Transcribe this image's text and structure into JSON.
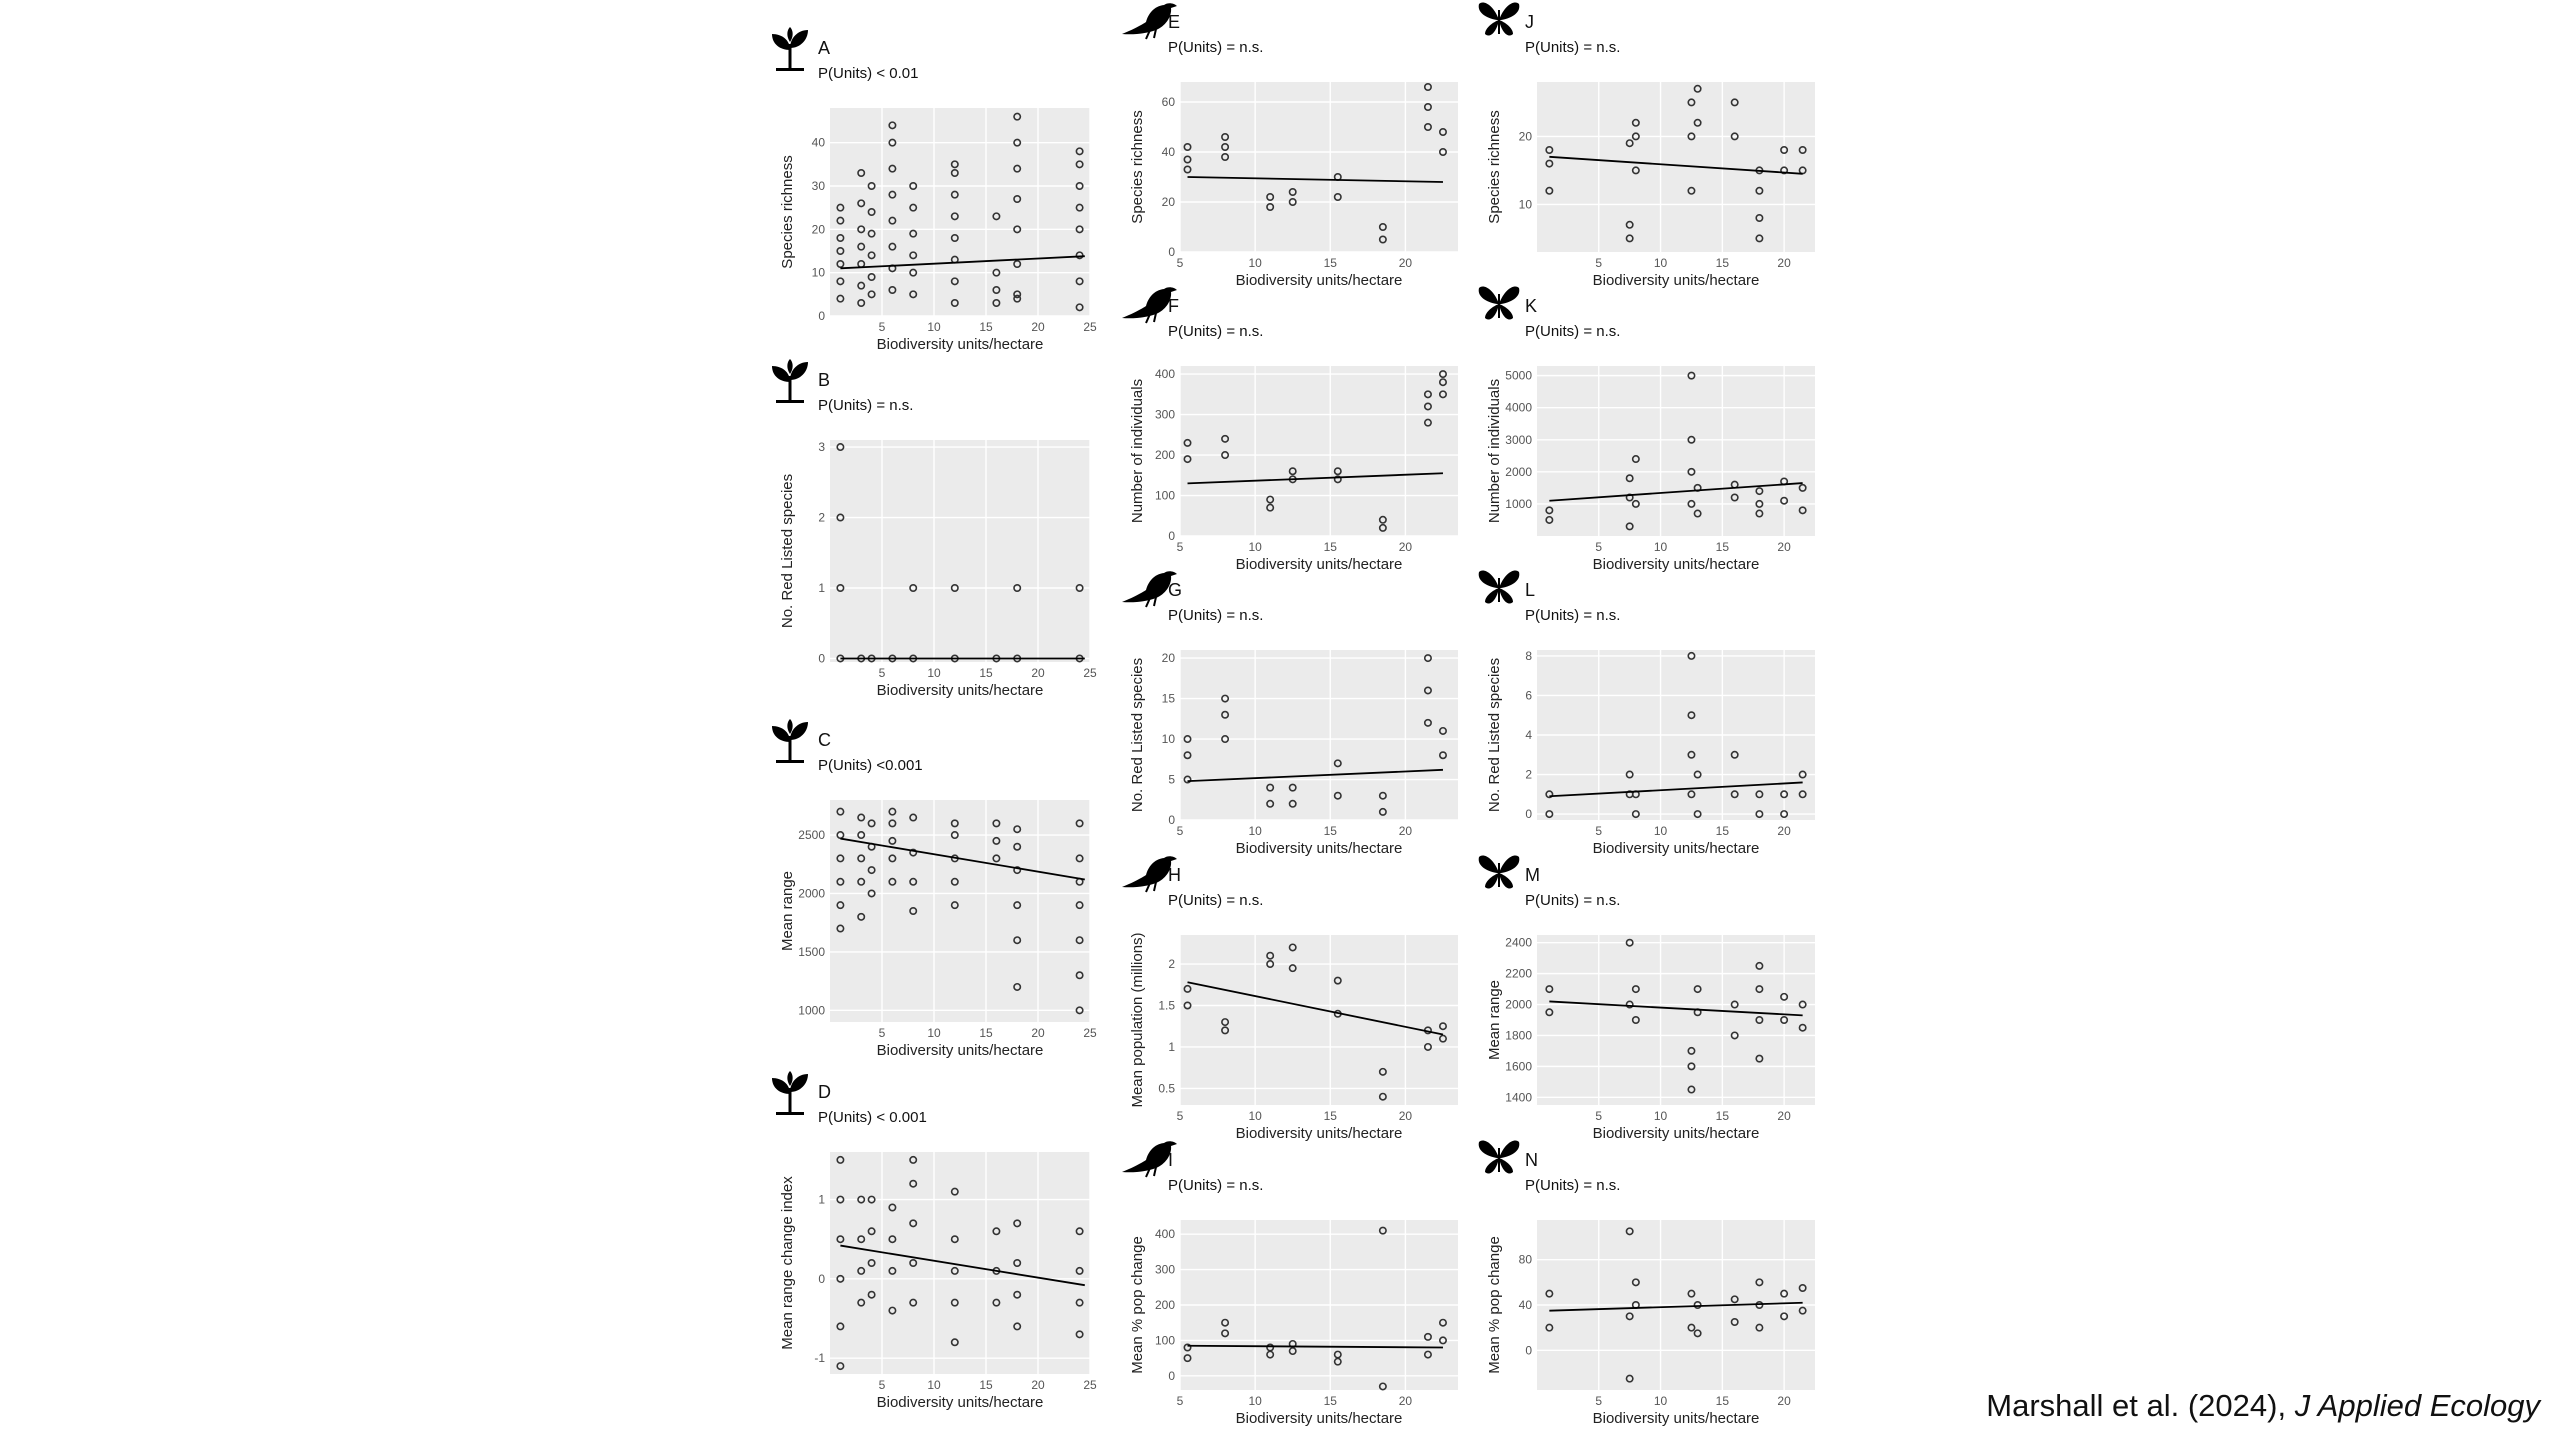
{
  "citation": {
    "authors": "Marshall et al. (2024),",
    "journal": "J Applied Ecology"
  },
  "icon_legend": {
    "plant": "plant-icon",
    "bird": "bird-icon",
    "butterfly": "butterfly-icon"
  },
  "colors": {
    "panel_bg": "#ebebeb",
    "grid": "#ffffff",
    "points": "#333333",
    "line": "#000000"
  },
  "chart_data": [
    {
      "letter": "A",
      "type": "scatter",
      "icon": "plant-icon",
      "stat": "P(Units) < 0.01",
      "xlabel": "Biodiversity units/hectare",
      "ylabel": "Species richness",
      "xlim": [
        0,
        25
      ],
      "ylim": [
        0,
        48
      ],
      "xticks": [
        5,
        10,
        15,
        20,
        25
      ],
      "yticks": [
        0,
        10,
        20,
        30,
        40
      ],
      "x": [
        1,
        1,
        1,
        1,
        1,
        1,
        1,
        3,
        3,
        3,
        3,
        3,
        3,
        3,
        4,
        4,
        4,
        4,
        4,
        4,
        6,
        6,
        6,
        6,
        6,
        6,
        6,
        6,
        8,
        8,
        8,
        8,
        8,
        8,
        12,
        12,
        12,
        12,
        12,
        12,
        12,
        12,
        16,
        16,
        16,
        16,
        18,
        18,
        18,
        18,
        18,
        18,
        18,
        18,
        24,
        24,
        24,
        24,
        24,
        24,
        24,
        24
      ],
      "y": [
        4,
        8,
        12,
        15,
        18,
        22,
        25,
        3,
        7,
        12,
        16,
        20,
        26,
        33,
        5,
        9,
        14,
        19,
        24,
        30,
        6,
        11,
        16,
        22,
        28,
        34,
        40,
        44,
        5,
        10,
        14,
        19,
        25,
        30,
        3,
        8,
        13,
        18,
        23,
        28,
        33,
        35,
        3,
        6,
        10,
        23,
        5,
        12,
        20,
        27,
        34,
        40,
        46,
        4,
        2,
        8,
        14,
        20,
        25,
        30,
        35,
        38
      ],
      "fit": {
        "x": [
          1,
          24.5
        ],
        "y": [
          11,
          13.8
        ]
      }
    },
    {
      "letter": "B",
      "type": "scatter",
      "icon": "plant-icon",
      "stat": "P(Units) = n.s.",
      "xlabel": "Biodiversity units/hectare",
      "ylabel": "No. Red Listed species",
      "xlim": [
        0,
        25
      ],
      "ylim": [
        -0.05,
        3.1
      ],
      "xticks": [
        5,
        10,
        15,
        20,
        25
      ],
      "yticks": [
        0,
        1,
        2,
        3
      ],
      "x": [
        1,
        1,
        1,
        1,
        3,
        4,
        6,
        8,
        8,
        12,
        12,
        16,
        18,
        18,
        24,
        24
      ],
      "y": [
        0,
        1,
        2,
        3,
        0,
        0,
        0,
        0,
        1,
        0,
        1,
        0,
        0,
        1,
        0,
        1
      ],
      "fit": {
        "x": [
          1,
          24.5
        ],
        "y": [
          0,
          0
        ]
      }
    },
    {
      "letter": "C",
      "type": "scatter",
      "icon": "plant-icon",
      "stat": "P(Units) <0.001",
      "xlabel": "Biodiversity units/hectare",
      "ylabel": "Mean range",
      "xlim": [
        0,
        25
      ],
      "ylim": [
        900,
        2800
      ],
      "xticks": [
        5,
        10,
        15,
        20,
        25
      ],
      "yticks": [
        1000,
        1500,
        2000,
        2500
      ],
      "x": [
        1,
        1,
        1,
        1,
        1,
        1,
        3,
        3,
        3,
        3,
        3,
        4,
        4,
        4,
        4,
        6,
        6,
        6,
        6,
        6,
        8,
        8,
        8,
        8,
        12,
        12,
        12,
        12,
        12,
        16,
        16,
        16,
        18,
        18,
        18,
        18,
        18,
        18,
        24,
        24,
        24,
        24,
        24,
        24,
        24
      ],
      "y": [
        1700,
        1900,
        2100,
        2300,
        2500,
        2700,
        1800,
        2100,
        2300,
        2500,
        2650,
        2000,
        2200,
        2400,
        2600,
        2100,
        2300,
        2450,
        2600,
        2700,
        1850,
        2100,
        2350,
        2650,
        1900,
        2100,
        2300,
        2500,
        2600,
        2300,
        2450,
        2600,
        1200,
        1600,
        1900,
        2200,
        2400,
        2550,
        1000,
        1300,
        1600,
        1900,
        2100,
        2300,
        2600
      ],
      "fit": {
        "x": [
          1,
          24.5
        ],
        "y": [
          2470,
          2120
        ]
      }
    },
    {
      "letter": "D",
      "type": "scatter",
      "icon": "plant-icon",
      "stat": "P(Units) < 0.001",
      "xlabel": "Biodiversity units/hectare",
      "ylabel": "Mean range change index",
      "xlim": [
        0,
        25
      ],
      "ylim": [
        -1.2,
        1.6
      ],
      "xticks": [
        5,
        10,
        15,
        20,
        25
      ],
      "yticks": [
        -1,
        0,
        1
      ],
      "x": [
        1,
        1,
        1,
        1,
        1,
        1,
        3,
        3,
        3,
        3,
        4,
        4,
        4,
        4,
        6,
        6,
        6,
        6,
        8,
        8,
        8,
        8,
        8,
        12,
        12,
        12,
        12,
        12,
        16,
        16,
        16,
        18,
        18,
        18,
        18,
        24,
        24,
        24,
        24
      ],
      "y": [
        -1.1,
        -0.6,
        0,
        0.5,
        1,
        1.5,
        -0.3,
        0.1,
        0.5,
        1,
        -0.2,
        0.2,
        0.6,
        1,
        -0.4,
        0.1,
        0.5,
        0.9,
        -0.3,
        0.2,
        0.7,
        1.2,
        1.5,
        -0.8,
        -0.3,
        0.1,
        0.5,
        1.1,
        -0.3,
        0.1,
        0.6,
        -0.6,
        -0.2,
        0.2,
        0.7,
        -0.7,
        -0.3,
        0.1,
        0.6
      ],
      "fit": {
        "x": [
          1,
          24.5
        ],
        "y": [
          0.42,
          -0.08
        ]
      }
    },
    {
      "letter": "E",
      "type": "scatter",
      "icon": "bird-icon",
      "stat": "P(Units) = n.s.",
      "xlabel": "Biodiversity units/hectare",
      "ylabel": "Species richness",
      "xlim": [
        5,
        23.5
      ],
      "ylim": [
        0,
        68
      ],
      "xticks": [
        5,
        10,
        15,
        20
      ],
      "yticks": [
        0,
        20,
        40,
        60
      ],
      "x": [
        5.5,
        5.5,
        5.5,
        8,
        8,
        8,
        11,
        11,
        12.5,
        12.5,
        15.5,
        15.5,
        18.5,
        18.5,
        21.5,
        21.5,
        21.5,
        22.5,
        22.5
      ],
      "y": [
        33,
        37,
        42,
        38,
        42,
        46,
        18,
        22,
        20,
        24,
        22,
        30,
        5,
        10,
        50,
        58,
        66,
        40,
        48
      ],
      "fit": {
        "x": [
          5.5,
          22.5
        ],
        "y": [
          30,
          28
        ]
      }
    },
    {
      "letter": "F",
      "type": "scatter",
      "icon": "bird-icon",
      "stat": "P(Units) = n.s.",
      "xlabel": "Biodiversity units/hectare",
      "ylabel": "Number of individuals",
      "xlim": [
        5,
        23.5
      ],
      "ylim": [
        0,
        420
      ],
      "xticks": [
        5,
        10,
        15,
        20
      ],
      "yticks": [
        0,
        100,
        200,
        300,
        400
      ],
      "x": [
        5.5,
        5.5,
        8,
        8,
        11,
        11,
        12.5,
        12.5,
        15.5,
        15.5,
        18.5,
        18.5,
        21.5,
        21.5,
        21.5,
        22.5,
        22.5,
        22.5
      ],
      "y": [
        190,
        230,
        200,
        240,
        70,
        90,
        140,
        160,
        140,
        160,
        20,
        40,
        280,
        320,
        350,
        350,
        380,
        400
      ],
      "fit": {
        "x": [
          5.5,
          22.5
        ],
        "y": [
          130,
          155
        ]
      }
    },
    {
      "letter": "G",
      "type": "scatter",
      "icon": "bird-icon",
      "stat": "P(Units) = n.s.",
      "xlabel": "Biodiversity units/hectare",
      "ylabel": "No. Red Listed species",
      "xlim": [
        5,
        23.5
      ],
      "ylim": [
        0,
        21
      ],
      "xticks": [
        5,
        10,
        15,
        20
      ],
      "yticks": [
        0,
        5,
        10,
        15,
        20
      ],
      "x": [
        5.5,
        5.5,
        5.5,
        8,
        8,
        8,
        11,
        11,
        12.5,
        12.5,
        15.5,
        15.5,
        18.5,
        18.5,
        21.5,
        21.5,
        21.5,
        22.5,
        22.5
      ],
      "y": [
        5,
        8,
        10,
        10,
        13,
        15,
        2,
        4,
        2,
        4,
        3,
        7,
        1,
        3,
        12,
        16,
        20,
        8,
        11
      ],
      "fit": {
        "x": [
          5.5,
          22.5
        ],
        "y": [
          4.8,
          6.2
        ]
      }
    },
    {
      "letter": "H",
      "type": "scatter",
      "icon": "bird-icon",
      "stat": "P(Units) = n.s.",
      "xlabel": "Biodiversity units/hectare",
      "ylabel": "Mean population (millions)",
      "xlim": [
        5,
        23.5
      ],
      "ylim": [
        0.3,
        2.35
      ],
      "xticks": [
        5,
        10,
        15,
        20
      ],
      "yticks": [
        0.5,
        1.0,
        1.5,
        2.0
      ],
      "x": [
        5.5,
        5.5,
        8,
        8,
        11,
        11,
        12.5,
        12.5,
        15.5,
        15.5,
        18.5,
        18.5,
        21.5,
        21.5,
        22.5,
        22.5
      ],
      "y": [
        1.5,
        1.7,
        1.2,
        1.3,
        2.0,
        2.1,
        1.95,
        2.2,
        1.4,
        1.8,
        0.4,
        0.7,
        1.0,
        1.2,
        1.1,
        1.25
      ],
      "fit": {
        "x": [
          5.5,
          22.5
        ],
        "y": [
          1.78,
          1.15
        ]
      }
    },
    {
      "letter": "I",
      "type": "scatter",
      "icon": "bird-icon",
      "stat": "P(Units) = n.s.",
      "xlabel": "Biodiversity units/hectare",
      "ylabel": "Mean % pop change",
      "xlim": [
        5,
        23.5
      ],
      "ylim": [
        -40,
        440
      ],
      "xticks": [
        5,
        10,
        15,
        20
      ],
      "yticks": [
        0,
        100,
        200,
        300,
        400
      ],
      "x": [
        5.5,
        5.5,
        8,
        8,
        11,
        11,
        12.5,
        12.5,
        15.5,
        15.5,
        18.5,
        18.5,
        21.5,
        21.5,
        22.5,
        22.5
      ],
      "y": [
        50,
        80,
        120,
        150,
        60,
        80,
        70,
        90,
        40,
        60,
        -30,
        410,
        60,
        110,
        100,
        150
      ],
      "fit": {
        "x": [
          5.5,
          22.5
        ],
        "y": [
          85,
          80
        ]
      }
    },
    {
      "letter": "J",
      "type": "scatter",
      "icon": "butterfly-icon",
      "stat": "P(Units) = n.s.",
      "xlabel": "Biodiversity units/hectare",
      "ylabel": "Species richness",
      "xlim": [
        0,
        22.5
      ],
      "ylim": [
        3,
        28
      ],
      "xticks": [
        5,
        10,
        15,
        20
      ],
      "yticks": [
        10,
        20
      ],
      "x": [
        1,
        1,
        1,
        7.5,
        7.5,
        7.5,
        8,
        8,
        8,
        12.5,
        12.5,
        12.5,
        13,
        13,
        16,
        16,
        18,
        18,
        18,
        18,
        20,
        20,
        21.5,
        21.5
      ],
      "y": [
        12,
        16,
        18,
        5,
        7,
        19,
        15,
        20,
        22,
        12,
        20,
        25,
        22,
        27,
        20,
        25,
        5,
        8,
        12,
        15,
        15,
        18,
        15,
        18
      ],
      "fit": {
        "x": [
          1,
          21.5
        ],
        "y": [
          17,
          14.5
        ]
      }
    },
    {
      "letter": "K",
      "type": "scatter",
      "icon": "butterfly-icon",
      "stat": "P(Units) = n.s.",
      "xlabel": "Biodiversity units/hectare",
      "ylabel": "Number of individuals",
      "xlim": [
        0,
        22.5
      ],
      "ylim": [
        0,
        5300
      ],
      "xticks": [
        5,
        10,
        15,
        20
      ],
      "yticks": [
        1000,
        2000,
        3000,
        4000,
        5000
      ],
      "x": [
        1,
        1,
        7.5,
        7.5,
        7.5,
        8,
        8,
        12.5,
        12.5,
        12.5,
        12.5,
        13,
        13,
        16,
        16,
        18,
        18,
        18,
        20,
        20,
        21.5,
        21.5
      ],
      "y": [
        500,
        800,
        300,
        1200,
        1800,
        1000,
        2400,
        1000,
        2000,
        3000,
        5000,
        700,
        1500,
        1200,
        1600,
        700,
        1000,
        1400,
        1100,
        1700,
        800,
        1500
      ],
      "fit": {
        "x": [
          1,
          21.5
        ],
        "y": [
          1100,
          1650
        ]
      }
    },
    {
      "letter": "L",
      "type": "scatter",
      "icon": "butterfly-icon",
      "stat": "P(Units) = n.s.",
      "xlabel": "Biodiversity units/hectare",
      "ylabel": "No. Red Listed species",
      "xlim": [
        0,
        22.5
      ],
      "ylim": [
        -0.3,
        8.3
      ],
      "xticks": [
        5,
        10,
        15,
        20
      ],
      "yticks": [
        0,
        2,
        4,
        6,
        8
      ],
      "x": [
        1,
        1,
        7.5,
        7.5,
        8,
        8,
        12.5,
        12.5,
        12.5,
        12.5,
        13,
        13,
        16,
        16,
        18,
        18,
        20,
        20,
        21.5,
        21.5
      ],
      "y": [
        0,
        1,
        1,
        2,
        0,
        1,
        1,
        3,
        5,
        8,
        0,
        2,
        1,
        3,
        0,
        1,
        0,
        1,
        1,
        2
      ],
      "fit": {
        "x": [
          1,
          21.5
        ],
        "y": [
          0.9,
          1.6
        ]
      }
    },
    {
      "letter": "M",
      "type": "scatter",
      "icon": "butterfly-icon",
      "stat": "P(Units) = n.s.",
      "xlabel": "Biodiversity units/hectare",
      "ylabel": "Mean range",
      "xlim": [
        0,
        22.5
      ],
      "ylim": [
        1350,
        2450
      ],
      "xticks": [
        5,
        10,
        15,
        20
      ],
      "yticks": [
        1400,
        1600,
        1800,
        2000,
        2200,
        2400
      ],
      "x": [
        1,
        1,
        7.5,
        7.5,
        8,
        8,
        12.5,
        12.5,
        12.5,
        13,
        13,
        16,
        16,
        18,
        18,
        18,
        18,
        20,
        20,
        21.5,
        21.5
      ],
      "y": [
        1950,
        2100,
        2000,
        2400,
        1900,
        2100,
        1450,
        1600,
        1700,
        1950,
        2100,
        1800,
        2000,
        1650,
        1900,
        2100,
        2250,
        1900,
        2050,
        1850,
        2000
      ],
      "fit": {
        "x": [
          1,
          21.5
        ],
        "y": [
          2020,
          1930
        ]
      }
    },
    {
      "letter": "N",
      "type": "scatter",
      "icon": "butterfly-icon",
      "stat": "P(Units) = n.s.",
      "xlabel": "Biodiversity units/hectare",
      "ylabel": "Mean % pop change",
      "xlim": [
        0,
        22.5
      ],
      "ylim": [
        -35,
        115
      ],
      "xticks": [
        5,
        10,
        15,
        20
      ],
      "yticks": [
        0,
        40,
        80
      ],
      "x": [
        1,
        1,
        7.5,
        7.5,
        7.5,
        8,
        8,
        12.5,
        12.5,
        13,
        13,
        16,
        16,
        18,
        18,
        18,
        20,
        20,
        21.5,
        21.5
      ],
      "y": [
        20,
        50,
        -25,
        30,
        105,
        40,
        60,
        20,
        50,
        15,
        40,
        25,
        45,
        20,
        40,
        60,
        30,
        50,
        35,
        55
      ],
      "fit": {
        "x": [
          1,
          21.5
        ],
        "y": [
          35,
          42
        ]
      }
    }
  ]
}
